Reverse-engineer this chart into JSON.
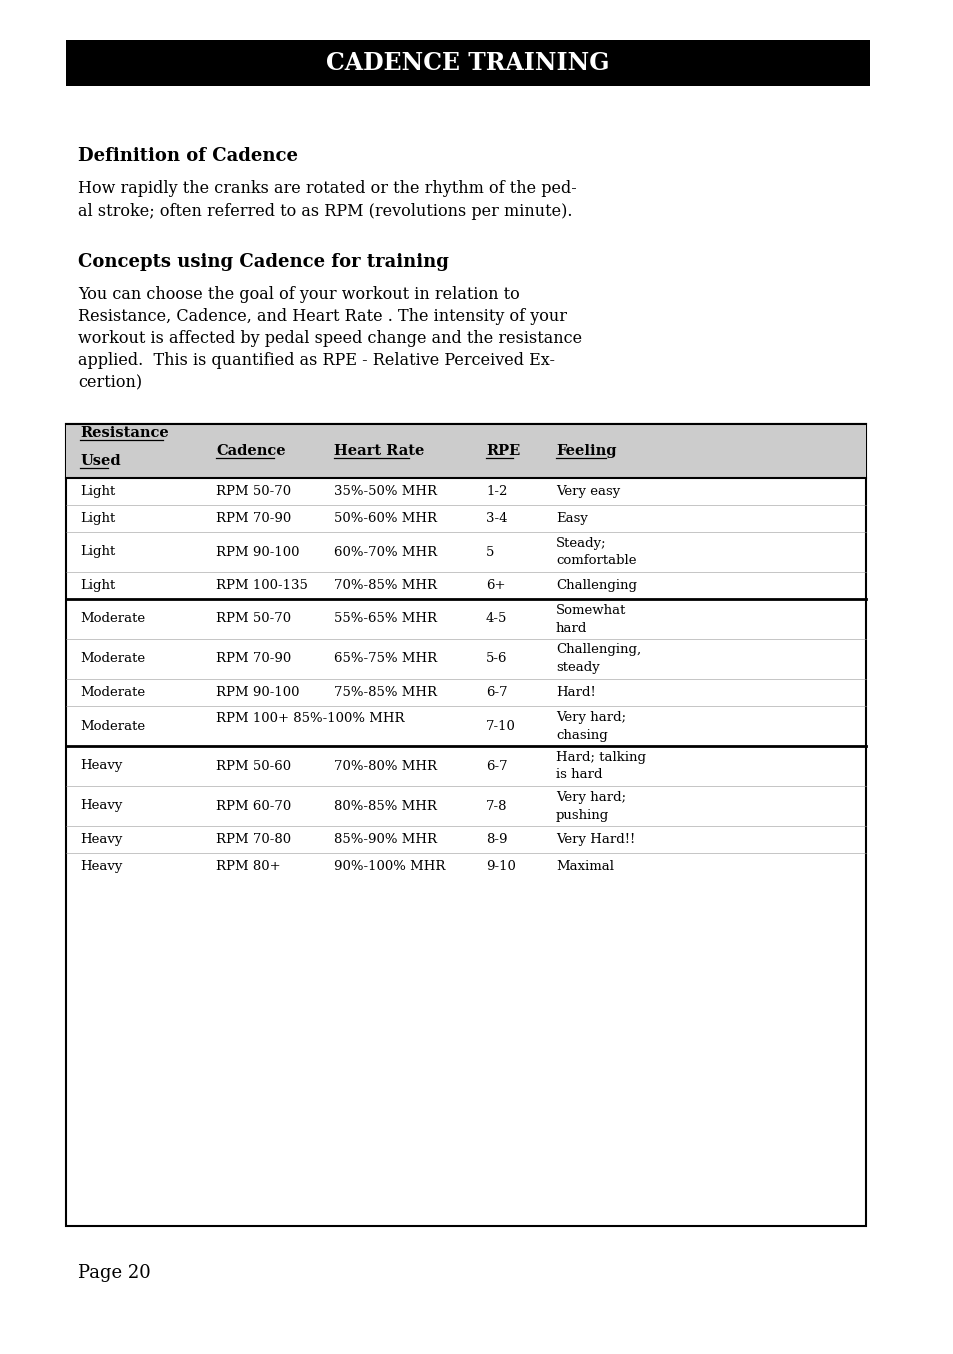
{
  "page_bg": "#ffffff",
  "title_text": "CADENCE TRAINING",
  "title_bg": "#000000",
  "title_color": "#ffffff",
  "section1_heading": "Definition of Cadence",
  "section1_body1": "How rapidly the cranks are rotated or the rhythm of the ped-",
  "section1_body2": "al stroke; often referred to as RPM (revolutions per minute).",
  "section2_heading": "Concepts using Cadence for training",
  "section2_lines": [
    "You can choose the goal of your workout in relation to",
    "Resistance, Cadence, and Heart Rate . The intensity of your",
    "workout is affected by pedal speed change and the resistance",
    "applied.  This is quantified as RPE - Relative Perceived Ex-",
    "certion)"
  ],
  "table_header_bg": "#cccccc",
  "col_headers_line1": [
    "Resistance",
    "Cadence",
    "Heart Rate",
    "RPE",
    "Feeling"
  ],
  "col_headers_line2": [
    "Used",
    "",
    "",
    "",
    ""
  ],
  "col_underline_widths": [
    83,
    58,
    75,
    27,
    50
  ],
  "table_rows": [
    [
      "Light",
      "RPM 50-70",
      "35%-50% MHR",
      "1-2",
      "Very easy"
    ],
    [
      "Light",
      "RPM 70-90",
      "50%-60% MHR",
      "3-4",
      "Easy"
    ],
    [
      "Light",
      "RPM 90-100",
      "60%-70% MHR",
      "5",
      "Steady;\ncomfortable"
    ],
    [
      "Light",
      "RPM 100-135",
      "70%-85% MHR",
      "6+",
      "Challenging"
    ],
    [
      "Moderate",
      "RPM 50-70",
      "55%-65% MHR",
      "4-5",
      "Somewhat\nhard"
    ],
    [
      "Moderate",
      "RPM 70-90",
      "65%-75% MHR",
      "5-6",
      "Challenging,\nsteady"
    ],
    [
      "Moderate",
      "RPM 90-100",
      "75%-85% MHR",
      "6-7",
      "Hard!"
    ],
    [
      "Moderate",
      "RPM 100+ 85%-100% MHR",
      "",
      "7-10",
      "Very hard;\nchasing"
    ],
    [
      "Heavy",
      "RPM 50-60",
      "70%-80% MHR",
      "6-7",
      "Hard; talking\nis hard"
    ],
    [
      "Heavy",
      "RPM 60-70",
      "80%-85% MHR",
      "7-8",
      "Very hard;\npushing"
    ],
    [
      "Heavy",
      "RPM 70-80",
      "85%-90% MHR",
      "8-9",
      "Very Hard!!"
    ],
    [
      "Heavy",
      "RPM 80+",
      "90%-100% MHR",
      "9-10",
      "Maximal"
    ]
  ],
  "group_separators_after": [
    3,
    7
  ],
  "page_number": "Page 20",
  "fs_title": 17,
  "fs_heading": 13,
  "fs_body": 11.5,
  "fs_table": 9.5,
  "fs_page": 13
}
